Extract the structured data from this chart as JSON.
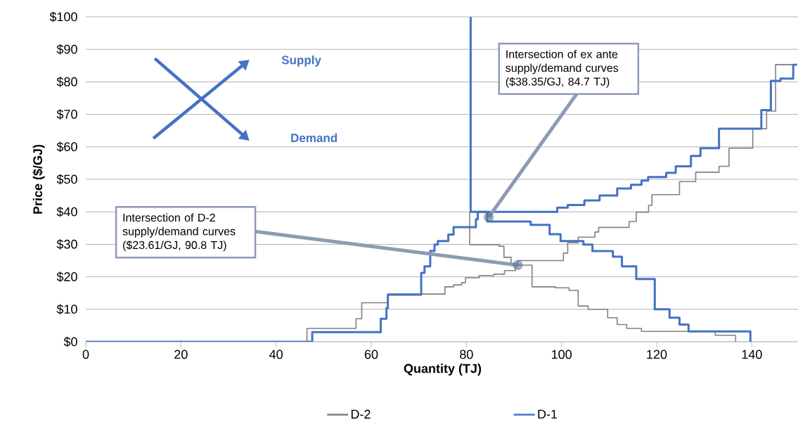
{
  "chart_data": {
    "type": "step",
    "xlabel": "Quantity (TJ)",
    "ylabel": "Price ($/GJ)",
    "xlim": [
      0,
      150
    ],
    "ylim": [
      0,
      100
    ],
    "xticks": [
      0,
      20,
      40,
      60,
      80,
      100,
      120,
      140
    ],
    "yticks": [
      {
        "value": 0,
        "label": "$0"
      },
      {
        "value": 10,
        "label": "$10"
      },
      {
        "value": 20,
        "label": "$20"
      },
      {
        "value": 30,
        "label": "$30"
      },
      {
        "value": 40,
        "label": "$40"
      },
      {
        "value": 50,
        "label": "$50"
      },
      {
        "value": 60,
        "label": "$60"
      },
      {
        "value": 70,
        "label": "$70"
      },
      {
        "value": 80,
        "label": "$80"
      },
      {
        "value": 90,
        "label": "$90"
      },
      {
        "value": 100,
        "label": "$100"
      }
    ],
    "grid": "y",
    "legend": "bottom",
    "series": [
      {
        "name": "D-2",
        "color": "#808080",
        "x": [
          0,
          46.5,
          56.8,
          58,
          63.5,
          75.5,
          77.3,
          79,
          79.8,
          82.7,
          85.8,
          88,
          90.3,
          90.8,
          100.4,
          101.3,
          103.5,
          107,
          107.8,
          114.2,
          115.7,
          118.3,
          119,
          124.8,
          128.2,
          133.1,
          135.2,
          140.2,
          143.1,
          145,
          149.5
        ],
        "values": [
          0,
          4.1,
          7.1,
          12,
          14.7,
          16.9,
          17.5,
          18.2,
          19.7,
          20.4,
          20.8,
          21.9,
          23.6,
          25,
          27.3,
          30.5,
          32.2,
          33.8,
          35.2,
          37,
          39.9,
          42,
          45.3,
          49.3,
          52.2,
          54,
          59.6,
          65.6,
          71,
          85.3,
          85.3
        ]
      },
      {
        "color": "#808080",
        "x": [
          80.7,
          80.7,
          86.9,
          87.9,
          89.4,
          90.3,
          93.8,
          98.7,
          101.6,
          103.5,
          105.6,
          109.7,
          111.7,
          113.7,
          116.8,
          132.3,
          136.6
        ],
        "values": [
          40,
          29.9,
          29.4,
          26,
          24,
          23.6,
          16.9,
          16.6,
          15.8,
          11,
          10,
          7.4,
          5.3,
          4.1,
          3.2,
          2,
          0
        ]
      },
      {
        "name": "D-1",
        "color": "#4472c4",
        "x": [
          0,
          47.6,
          62,
          63.2,
          63.5,
          70.5,
          71.2,
          72.4,
          73.3,
          74,
          76.2,
          77.3,
          82,
          82.4,
          99.1,
          101.3,
          104.8,
          108,
          111.7,
          114.6,
          116.8,
          118.2,
          122,
          124,
          127.2,
          129.2,
          133.1,
          142,
          144,
          146,
          148.7,
          149.5
        ],
        "values": [
          0,
          3,
          7.1,
          10.4,
          14.5,
          21.2,
          23.2,
          28,
          29.9,
          31,
          33,
          35.3,
          37.7,
          40,
          41.3,
          42.1,
          43.5,
          45,
          47.2,
          48.3,
          49.6,
          50.7,
          52,
          54,
          57.2,
          59.6,
          65.6,
          71.3,
          80.3,
          81,
          85.3,
          85.3
        ]
      },
      {
        "color": "#4472c4",
        "x": [
          80.9,
          80.9,
          84.4,
          93.5,
          97.5,
          99.8,
          104.6,
          106.5,
          110.8,
          112.7,
          115.7,
          119.6,
          122.7,
          124.8,
          126.7,
          139.7
        ],
        "values": [
          100,
          40,
          37,
          36,
          33.1,
          31,
          29.9,
          27.9,
          26.2,
          23.2,
          19.3,
          10,
          7.4,
          5.3,
          3.2,
          0
        ]
      }
    ],
    "annotations": [
      {
        "text": "Intersection of ex ante supply/demand curves ($38.35/GJ, 84.7 TJ)",
        "x": 84.7,
        "y": 38.35
      },
      {
        "text": "Intersection of D-2 supply/demand curves ($23.61/GJ, 90.8 TJ)",
        "x": 90.8,
        "y": 23.61
      },
      "Supply",
      "Demand"
    ]
  }
}
